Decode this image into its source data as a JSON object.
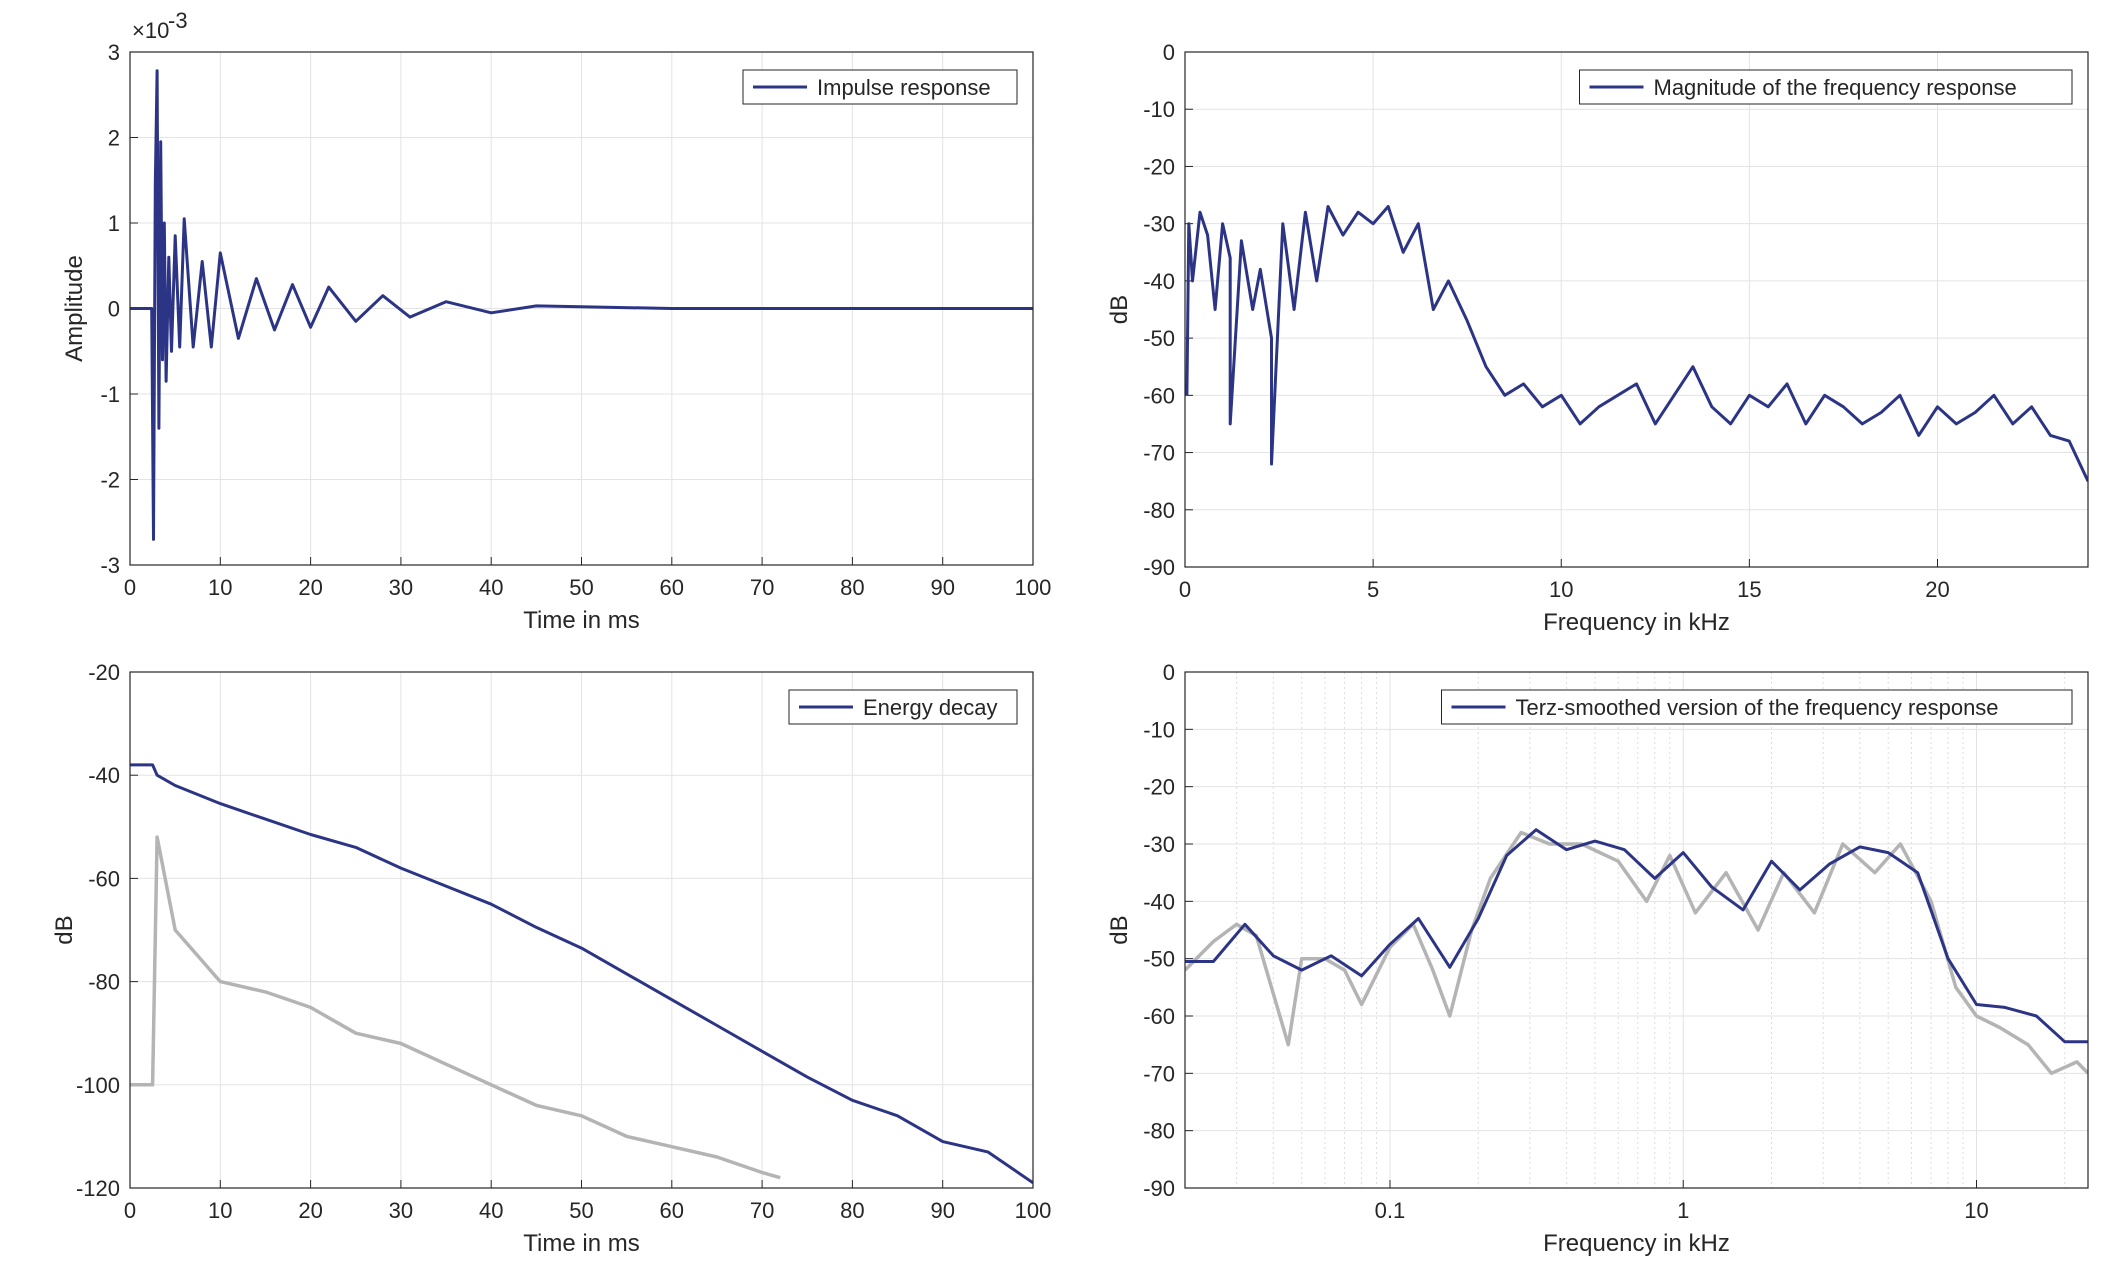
{
  "chart_data": [
    {
      "id": "impulse",
      "type": "line",
      "xlabel": "Time in ms",
      "ylabel": "Amplitude",
      "exponent_label": "×10",
      "exponent_power": "-3",
      "xlim": [
        0,
        100
      ],
      "ylim": [
        -3,
        3
      ],
      "xticks": [
        "0",
        "10",
        "20",
        "30",
        "40",
        "50",
        "60",
        "70",
        "80",
        "90",
        "100"
      ],
      "yticks": [
        "3",
        "2",
        "1",
        "0",
        "-1",
        "-2",
        "-3"
      ],
      "grid": true,
      "legend_position": "top-right",
      "colors": {
        "series": "#2c3585"
      },
      "series": [
        {
          "name": "Impulse response",
          "x": [
            0,
            2.4,
            2.6,
            2.8,
            3.0,
            3.2,
            3.4,
            3.6,
            3.8,
            4.0,
            4.3,
            4.6,
            5.0,
            5.5,
            6.0,
            7,
            8,
            9,
            10,
            12,
            14,
            16,
            18,
            20,
            22,
            25,
            28,
            31,
            35,
            40,
            45,
            50,
            60,
            70,
            80,
            90,
            100
          ],
          "y": [
            0,
            0,
            -2.7,
            1.45,
            2.78,
            -1.4,
            1.95,
            -0.6,
            1.0,
            -0.85,
            0.6,
            -0.5,
            0.85,
            -0.45,
            1.05,
            -0.45,
            0.55,
            -0.45,
            0.65,
            -0.35,
            0.35,
            -0.25,
            0.28,
            -0.22,
            0.25,
            -0.15,
            0.15,
            -0.1,
            0.08,
            -0.05,
            0.03,
            0.02,
            0,
            0,
            0,
            0,
            0
          ]
        }
      ]
    },
    {
      "id": "magnitude",
      "type": "line",
      "xlabel": "Frequency in kHz",
      "ylabel": "dB",
      "xlim": [
        0,
        24
      ],
      "ylim": [
        -90,
        0
      ],
      "xticks": [
        "0",
        "5",
        "10",
        "15",
        "20"
      ],
      "xtick_values": [
        0,
        5,
        10,
        15,
        20
      ],
      "yticks": [
        "0",
        "-10",
        "-20",
        "-30",
        "-40",
        "-50",
        "-60",
        "-70",
        "-80",
        "-90"
      ],
      "grid": true,
      "legend_position": "top-right",
      "colors": {
        "series": "#2c3585"
      },
      "series": [
        {
          "name": "Magnitude of the frequency response",
          "x": [
            0.05,
            0.1,
            0.2,
            0.4,
            0.6,
            0.8,
            1.0,
            1.2,
            1.2,
            1.5,
            1.8,
            2.0,
            2.3,
            2.3,
            2.6,
            2.9,
            3.2,
            3.5,
            3.8,
            4.2,
            4.6,
            5.0,
            5.4,
            5.8,
            6.2,
            6.6,
            7.0,
            7.5,
            8.0,
            8.5,
            9.0,
            9.5,
            10.0,
            10.5,
            11.0,
            11.5,
            12.0,
            12.5,
            13.0,
            13.5,
            14.0,
            14.5,
            15.0,
            15.5,
            16.0,
            16.5,
            17.0,
            17.5,
            18.0,
            18.5,
            19.0,
            19.5,
            20.0,
            20.5,
            21.0,
            21.5,
            22.0,
            22.5,
            23.0,
            23.5,
            24.0
          ],
          "y": [
            -60,
            -30,
            -40,
            -28,
            -32,
            -45,
            -30,
            -36,
            -65,
            -33,
            -45,
            -38,
            -50,
            -72,
            -30,
            -45,
            -28,
            -40,
            -27,
            -32,
            -28,
            -30,
            -27,
            -35,
            -30,
            -45,
            -40,
            -47,
            -55,
            -60,
            -58,
            -62,
            -60,
            -65,
            -62,
            -60,
            -58,
            -65,
            -60,
            -55,
            -62,
            -65,
            -60,
            -62,
            -58,
            -65,
            -60,
            -62,
            -65,
            -63,
            -60,
            -67,
            -62,
            -65,
            -63,
            -60,
            -65,
            -62,
            -67,
            -68,
            -75
          ]
        }
      ]
    },
    {
      "id": "energy",
      "type": "line",
      "xlabel": "Time in ms",
      "ylabel": "dB",
      "xlim": [
        0,
        100
      ],
      "ylim": [
        -120,
        -20
      ],
      "xticks": [
        "0",
        "10",
        "20",
        "30",
        "40",
        "50",
        "60",
        "70",
        "80",
        "90",
        "100"
      ],
      "yticks": [
        "-20",
        "-40",
        "-60",
        "-80",
        "-100",
        "-120"
      ],
      "grid": true,
      "legend_position": "top-right",
      "colors": {
        "series": "#2c3585",
        "background": "#b4b4b4"
      },
      "series": [
        {
          "name": "Energy decay",
          "x": [
            0,
            2.5,
            3,
            5,
            10,
            15,
            20,
            25,
            30,
            35,
            40,
            45,
            50,
            55,
            60,
            65,
            70,
            75,
            80,
            85,
            90,
            95,
            100
          ],
          "y": [
            -38,
            -38,
            -40,
            -42,
            -45.5,
            -48.5,
            -51.5,
            -54,
            -58,
            -61.5,
            -65,
            -69.5,
            -73.5,
            -78.5,
            -83.5,
            -88.5,
            -93.5,
            -98.5,
            -103,
            -106,
            -111,
            -113,
            -119
          ]
        },
        {
          "name": "",
          "x": [
            0,
            2.5,
            3,
            5,
            10,
            15,
            20,
            25,
            30,
            35,
            40,
            45,
            50,
            55,
            60,
            65,
            70,
            72
          ],
          "y": [
            -100,
            -100,
            -52,
            -70,
            -80,
            -82,
            -85,
            -90,
            -92,
            -96,
            -100,
            -104,
            -106,
            -110,
            -112,
            -114,
            -117,
            -118
          ]
        }
      ]
    },
    {
      "id": "terz",
      "type": "line",
      "xlabel": "Frequency in kHz",
      "ylabel": "dB",
      "xscale": "log",
      "xlim": [
        0.02,
        24
      ],
      "ylim": [
        -90,
        0
      ],
      "xticks": [
        "0.1",
        "1",
        "10"
      ],
      "xtick_values": [
        0.1,
        1,
        10
      ],
      "yticks": [
        "0",
        "-10",
        "-20",
        "-30",
        "-40",
        "-50",
        "-60",
        "-70",
        "-80",
        "-90"
      ],
      "grid": true,
      "legend_position": "top-right",
      "colors": {
        "series": "#2c3585",
        "background": "#b4b4b4"
      },
      "series": [
        {
          "name": "Terz-smoothed version of the frequency response",
          "x": [
            0.02,
            0.025,
            0.032,
            0.04,
            0.05,
            0.063,
            0.08,
            0.1,
            0.125,
            0.16,
            0.2,
            0.25,
            0.315,
            0.4,
            0.5,
            0.63,
            0.8,
            1.0,
            1.25,
            1.6,
            2.0,
            2.5,
            3.15,
            4.0,
            5.0,
            6.3,
            8.0,
            10.0,
            12.5,
            16.0,
            20.0,
            24.0
          ],
          "y": [
            -50.5,
            -50.5,
            -44,
            -49.5,
            -52,
            -49.5,
            -53,
            -47.5,
            -43,
            -51.5,
            -43,
            -32,
            -27.5,
            -31,
            -29.5,
            -31,
            -36,
            -31.5,
            -37.5,
            -41.5,
            -33,
            -38,
            -33.5,
            -30.5,
            -31.5,
            -35,
            -50,
            -58,
            -58.5,
            -60,
            -64.5,
            -64.5
          ]
        },
        {
          "name": "",
          "x": [
            0.02,
            0.025,
            0.03,
            0.035,
            0.045,
            0.05,
            0.06,
            0.07,
            0.08,
            0.1,
            0.12,
            0.14,
            0.16,
            0.19,
            0.22,
            0.28,
            0.35,
            0.45,
            0.6,
            0.75,
            0.9,
            1.1,
            1.4,
            1.8,
            2.2,
            2.8,
            3.5,
            4.5,
            5.5,
            7.0,
            8.5,
            10.0,
            12.0,
            15.0,
            18.0,
            22.0,
            24.0
          ],
          "y": [
            -52,
            -47,
            -44,
            -46,
            -65,
            -50,
            -50,
            -52,
            -58,
            -48,
            -44,
            -52,
            -60,
            -45,
            -36,
            -28,
            -30,
            -30,
            -33,
            -40,
            -32,
            -42,
            -35,
            -45,
            -35,
            -42,
            -30,
            -35,
            -30,
            -40,
            -55,
            -60,
            -62,
            -65,
            -70,
            -68,
            -70
          ]
        }
      ]
    }
  ]
}
